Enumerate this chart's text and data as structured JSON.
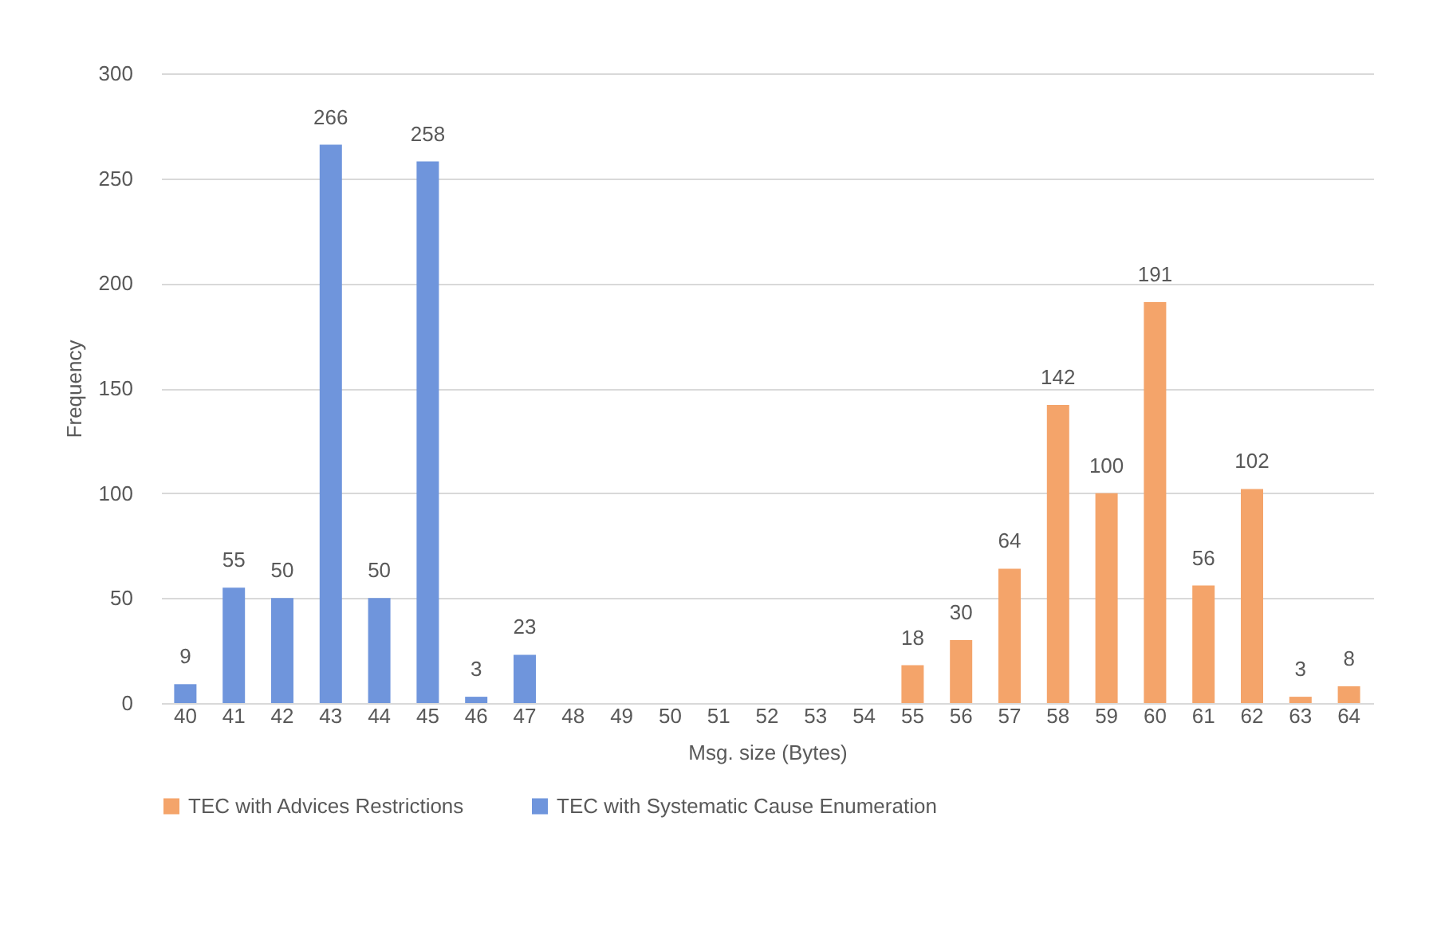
{
  "chart_data": {
    "type": "bar",
    "xlabel": "Msg. size (Bytes)",
    "ylabel": "Frequency",
    "categories": [
      "40",
      "41",
      "42",
      "43",
      "44",
      "45",
      "46",
      "47",
      "48",
      "49",
      "50",
      "51",
      "52",
      "53",
      "54",
      "55",
      "56",
      "57",
      "58",
      "59",
      "60",
      "61",
      "62",
      "63",
      "64"
    ],
    "series": [
      {
        "name": "TEC with Advices Restrictions",
        "color": "#f4a46a",
        "values": [
          null,
          null,
          null,
          null,
          null,
          null,
          null,
          null,
          null,
          null,
          null,
          null,
          null,
          null,
          null,
          18,
          30,
          64,
          142,
          100,
          191,
          56,
          102,
          3,
          8
        ]
      },
      {
        "name": "TEC with Systematic Cause Enumeration",
        "color": "#6f95dc",
        "values": [
          9,
          55,
          50,
          266,
          50,
          258,
          3,
          23,
          null,
          null,
          null,
          null,
          null,
          null,
          null,
          null,
          null,
          null,
          null,
          null,
          null,
          null,
          null,
          null,
          null
        ]
      }
    ],
    "ylim": [
      0,
      300
    ],
    "yticks": [
      0,
      50,
      100,
      150,
      200,
      250,
      300
    ],
    "grid": "y",
    "legend": "bottom",
    "data_labels": true
  }
}
